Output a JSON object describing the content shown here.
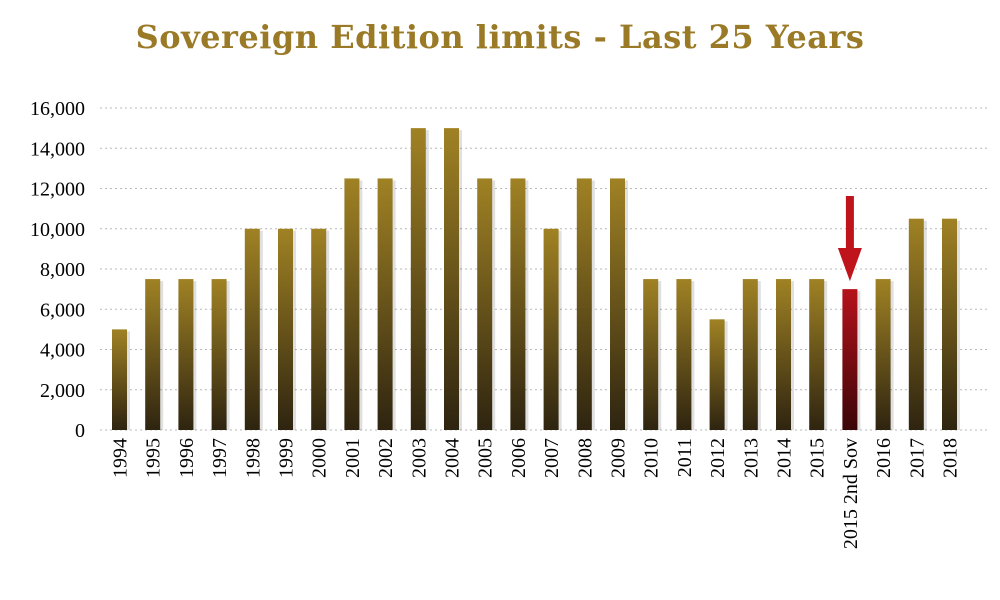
{
  "title": "Sovereign Edition limits - Last 25 Years",
  "colors": {
    "title": "#9a7a26",
    "bar_top": "#a08224",
    "bar_bottom": "#2e2410",
    "highlight_top": "#b5121b",
    "highlight_bottom": "#3a0608",
    "arrow": "#c0141c"
  },
  "chart_data": {
    "type": "bar",
    "categories": [
      "1994",
      "1995",
      "1996",
      "1997",
      "1998",
      "1999",
      "2000",
      "2001",
      "2002",
      "2003",
      "2004",
      "2005",
      "2006",
      "2007",
      "2008",
      "2009",
      "2010",
      "2011",
      "2012",
      "2013",
      "2014",
      "2015",
      "2015 2nd Sov",
      "2016",
      "2017",
      "2018"
    ],
    "values": [
      5000,
      7500,
      7500,
      7500,
      10000,
      10000,
      10000,
      12500,
      12500,
      15000,
      15000,
      12500,
      12500,
      10000,
      12500,
      12500,
      7500,
      7500,
      5500,
      7500,
      7500,
      7500,
      7000,
      7500,
      10500,
      10500
    ],
    "highlight_category": "2015 2nd Sov",
    "title": "Sovereign Edition limits - Last 25 Years",
    "xlabel": "",
    "ylabel": "",
    "ylim": [
      0,
      16000
    ],
    "yticks": [
      0,
      2000,
      4000,
      6000,
      8000,
      10000,
      12000,
      14000,
      16000
    ],
    "ytick_labels": [
      "0",
      "2,000",
      "4,000",
      "6,000",
      "8,000",
      "10,000",
      "12,000",
      "14,000",
      "16,000"
    ],
    "grid": true,
    "legend": "none",
    "annotation": "arrow pointing down at 2015 2nd Sov"
  }
}
